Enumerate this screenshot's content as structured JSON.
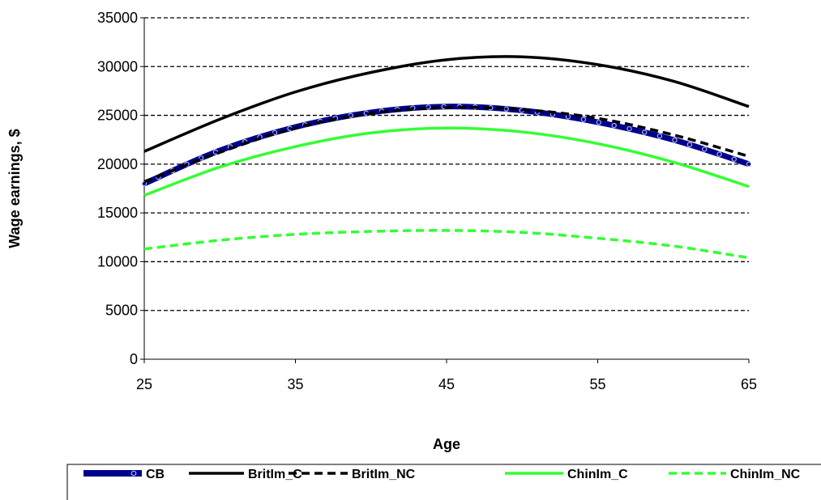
{
  "chart_data": {
    "type": "line",
    "xlabel": "Age",
    "ylabel": "Wage earnings, $",
    "xlim": [
      25,
      65
    ],
    "ylim": [
      0,
      35000
    ],
    "xticks": [
      25,
      35,
      45,
      55,
      65
    ],
    "yticks": [
      0,
      5000,
      10000,
      15000,
      20000,
      25000,
      30000,
      35000
    ],
    "grid": "horizontal dashed",
    "legend_position": "bottom",
    "x": [
      25,
      30,
      35,
      40,
      45,
      50,
      55,
      60,
      65
    ],
    "series": [
      {
        "name": "CB",
        "color": "#00008B",
        "style": "thick-with-markers",
        "values": [
          18000,
          21400,
          23800,
          25300,
          25900,
          25500,
          24300,
          22500,
          20000
        ]
      },
      {
        "name": "BritIm_C",
        "color": "#000000",
        "style": "solid",
        "values": [
          21300,
          24600,
          27400,
          29400,
          30700,
          31000,
          30200,
          28500,
          25900
        ]
      },
      {
        "name": "BritIm_NC",
        "color": "#000000",
        "style": "dashed",
        "values": [
          18200,
          21200,
          23700,
          25200,
          25800,
          25600,
          24700,
          23000,
          20800
        ]
      },
      {
        "name": "ChinIm_C",
        "color": "#33FF33",
        "style": "solid",
        "values": [
          16800,
          19700,
          21800,
          23200,
          23700,
          23300,
          22100,
          20200,
          17700
        ]
      },
      {
        "name": "ChinIm_NC",
        "color": "#33FF33",
        "style": "dashed",
        "values": [
          11300,
          12200,
          12800,
          13100,
          13200,
          13000,
          12400,
          11600,
          10400
        ]
      }
    ]
  }
}
